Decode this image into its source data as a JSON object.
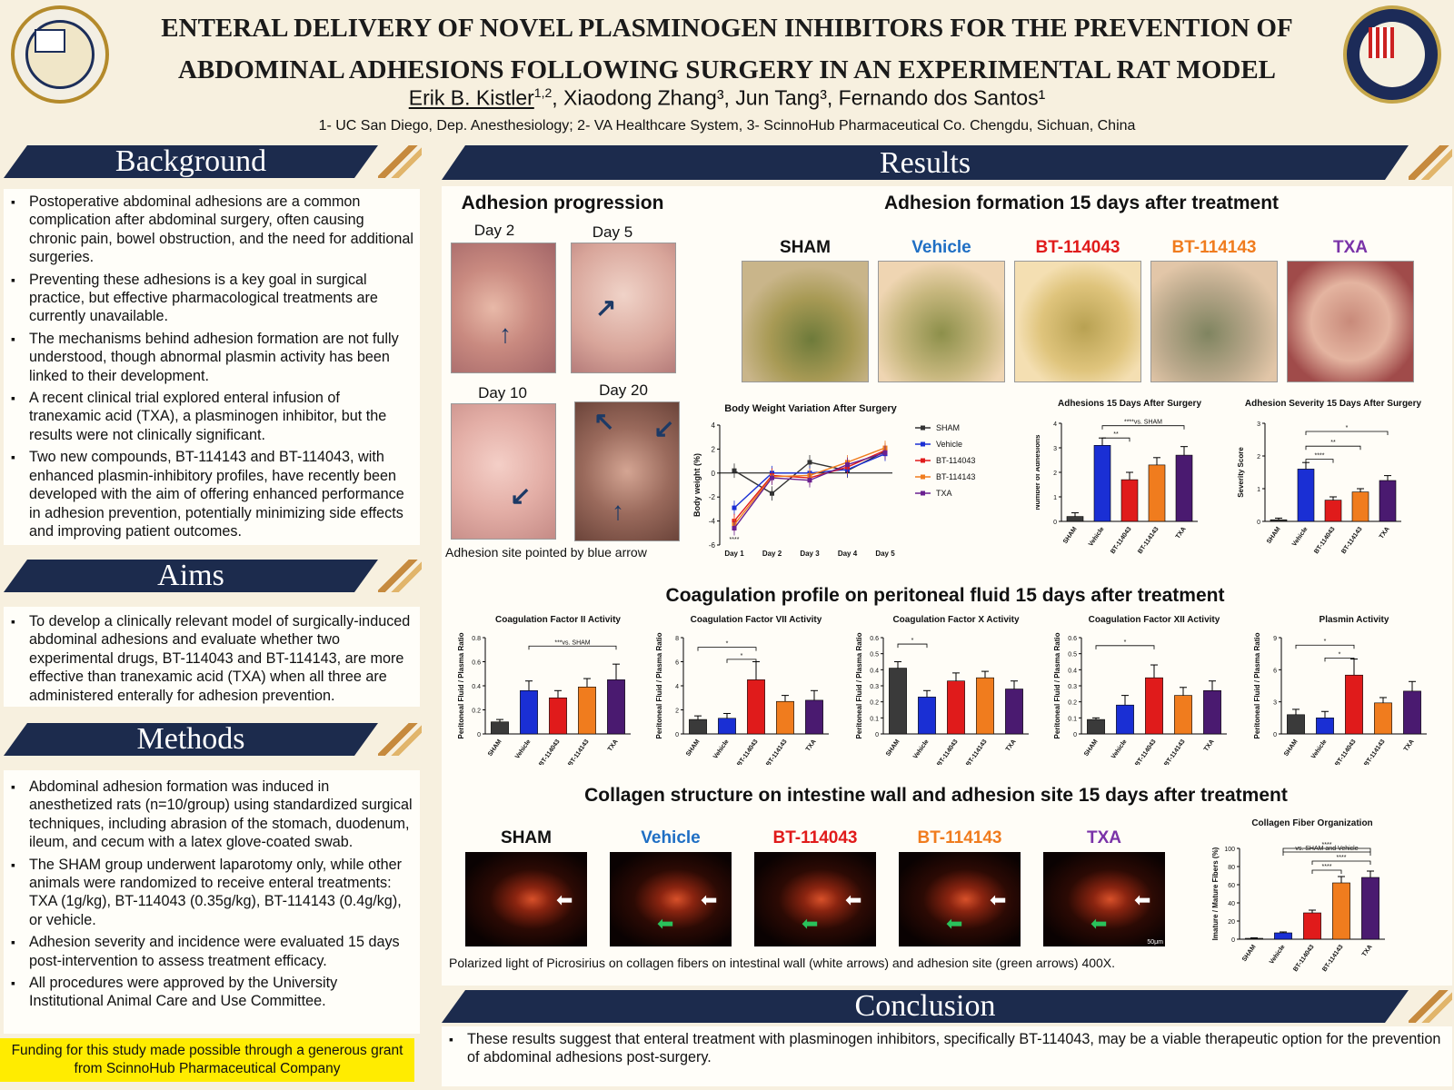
{
  "header": {
    "title_line1": "ENTERAL DELIVERY OF NOVEL PLASMINOGEN INHIBITORS FOR THE PREVENTION OF",
    "title_line2": "ABDOMINAL ADHESIONS FOLLOWING SURGERY IN AN EXPERIMENTAL RAT MODEL",
    "author_first": "Erik B. Kistler",
    "author_first_sup": "1,2",
    "authors_rest": ", Xiaodong Zhang³, Jun Tang³, Fernando dos Santos¹",
    "affiliations": "1- UC San Diego, Dep. Anesthesiology; 2- VA Healthcare System, 3- ScinnoHub Pharmaceutical Co. Chengdu, Sichuan, China",
    "left_logo_icon": "uc-san-diego-seal-icon",
    "right_logo_icon": "department-of-veterans-affairs-seal-icon"
  },
  "sections": {
    "background": "Background",
    "aims": "Aims",
    "methods": "Methods",
    "results": "Results",
    "conclusion": "Conclusion"
  },
  "background_items": [
    "Postoperative abdominal adhesions are a common complication after abdominal surgery, often causing chronic pain, bowel obstruction, and the need for additional surgeries.",
    "Preventing these adhesions is a key goal in surgical practice, but effective pharmacological treatments are currently unavailable.",
    "The mechanisms behind adhesion formation are not fully understood, though abnormal plasmin activity has been linked to their development.",
    "A recent clinical trial explored enteral infusion of tranexamic acid (TXA), a plasminogen inhibitor, but the results were not clinically significant.",
    "Two new compounds, BT-114143 and BT-114043, with enhanced plasmin-inhibitory profiles, have recently been developed with the aim of offering enhanced performance in adhesion prevention, potentially minimizing side effects and improving patient outcomes."
  ],
  "aims_items": [
    "To develop a clinically relevant model of surgically-induced abdominal adhesions and evaluate whether two experimental drugs, BT-114043 and BT-114143, are more effective than tranexamic acid (TXA) when all three are administered enterally for adhesion prevention."
  ],
  "methods_items": [
    "Abdominal adhesion formation was induced in anesthetized rats (n=10/group) using standardized surgical techniques, including abrasion of the stomach, duodenum, ileum, and cecum with a latex glove-coated swab.",
    "The SHAM group underwent laparotomy only, while other animals were randomized to receive enteral treatments: TXA (1g/kg), BT-114043 (0.35g/kg), BT-114143 (0.4g/kg), or vehicle.",
    "Adhesion severity and incidence were evaluated 15 days post-intervention to assess treatment efficacy.",
    "All procedures were approved by the University Institutional Animal Care and Use Committee."
  ],
  "funding": "Funding for this study made possible through a generous grant from ScinnoHub Pharmaceutical Company",
  "results": {
    "progression_title": "Adhesion progression",
    "days": [
      "Day 2",
      "Day 5",
      "Day 10",
      "Day 20"
    ],
    "progression_caption": "Adhesion site pointed by blue arrow",
    "formation_title": "Adhesion formation 15 days after treatment",
    "groups": [
      {
        "name": "SHAM",
        "color": "#111111"
      },
      {
        "name": "Vehicle",
        "color": "#1f6fc4"
      },
      {
        "name": "BT-114043",
        "color": "#e01b1b"
      },
      {
        "name": "BT-114143",
        "color": "#f07c1e"
      },
      {
        "name": "TXA",
        "color": "#7a33a8"
      }
    ],
    "coag_title": "Coagulation profile on peritoneal fluid 15 days after treatment",
    "collagen_title": "Collagen structure on intestine wall and adhesion site 15 days after treatment",
    "collagen_caption": "Polarized light of Picrosirius on collagen fibers on intestinal wall (white arrows) and adhesion site (green arrows) 400X.",
    "collagen_scale": "50μm"
  },
  "conclusion_text": "These results suggest that enteral treatment with plasminogen inhibitors, specifically BT-114043, may be a viable therapeutic option for the prevention of abdominal adhesions post-surgery.",
  "chart_data": [
    {
      "type": "line",
      "title": "Body Weight Variation After Surgery",
      "xlabel": "",
      "ylabel": "Body weight (%)",
      "x": [
        "Day 1",
        "Day 2",
        "Day 3",
        "Day 4",
        "Day 5"
      ],
      "ylim": [
        -6,
        4
      ],
      "yticks": [
        -6,
        -4,
        -2,
        0,
        2,
        4
      ],
      "series": [
        {
          "name": "SHAM",
          "color": "#333333",
          "values": [
            0.2,
            -1.7,
            0.9,
            0.2,
            1.8
          ]
        },
        {
          "name": "Vehicle",
          "color": "#1a2fd4",
          "values": [
            -2.9,
            0.0,
            0.0,
            0.3,
            1.6
          ]
        },
        {
          "name": "BT-114043",
          "color": "#e01b1b",
          "values": [
            -4.0,
            -0.2,
            -0.4,
            0.5,
            1.9
          ]
        },
        {
          "name": "BT-114143",
          "color": "#f07c1e",
          "values": [
            -4.3,
            -0.3,
            -0.2,
            0.9,
            2.1
          ]
        },
        {
          "name": "TXA",
          "color": "#6a2090",
          "values": [
            -4.6,
            -0.4,
            -0.6,
            0.7,
            1.7
          ]
        }
      ],
      "annotation": "****"
    },
    {
      "type": "bar",
      "title": "Adhesions 15 Days After Surgery",
      "ylabel": "Number of Adhesions",
      "categories": [
        "SHAM",
        "Vehicle",
        "BT-114043",
        "BT-114143",
        "TXA"
      ],
      "values": [
        0.2,
        3.1,
        1.7,
        2.3,
        2.7
      ],
      "errors": [
        0.15,
        0.3,
        0.3,
        0.3,
        0.35
      ],
      "ylim": [
        0,
        4
      ],
      "yticks": [
        0,
        1,
        2,
        3,
        4
      ],
      "annotations": [
        "****vs. SHAM",
        "**"
      ]
    },
    {
      "type": "bar",
      "title": "Adhesion Severity 15 Days After Surgery",
      "ylabel": "Severity Score",
      "categories": [
        "SHAM",
        "Vehicle",
        "BT-114043",
        "BT-114143",
        "TXA"
      ],
      "values": [
        0.05,
        1.6,
        0.65,
        0.9,
        1.25
      ],
      "errors": [
        0.05,
        0.2,
        0.1,
        0.1,
        0.15
      ],
      "ylim": [
        0,
        3
      ],
      "yticks": [
        0,
        1,
        2,
        3
      ],
      "annotations": [
        "*",
        "**",
        "****"
      ]
    },
    {
      "type": "bar",
      "title": "Coagulation Factor II Activity",
      "ylabel": "Peritoneal Fluid / Plasma Ratio",
      "categories": [
        "SHAM",
        "Vehicle",
        "BT-114043",
        "BT-114143",
        "TXA"
      ],
      "values": [
        0.1,
        0.36,
        0.3,
        0.39,
        0.45
      ],
      "errors": [
        0.02,
        0.08,
        0.06,
        0.07,
        0.13
      ],
      "ylim": [
        0,
        0.8
      ],
      "yticks": [
        0.0,
        0.2,
        0.4,
        0.6,
        0.8
      ],
      "annotations": [
        "***vs. SHAM"
      ]
    },
    {
      "type": "bar",
      "title": "Coagulation Factor VII Activity",
      "ylabel": "Peritoneal Fluid / Plasma Ratio",
      "categories": [
        "SHAM",
        "Vehicle",
        "BT-114043",
        "BT-114143",
        "TXA"
      ],
      "values": [
        1.2,
        1.3,
        4.5,
        2.7,
        2.8
      ],
      "errors": [
        0.3,
        0.4,
        1.5,
        0.5,
        0.8
      ],
      "ylim": [
        0,
        8
      ],
      "yticks": [
        0,
        2,
        4,
        6,
        8
      ],
      "annotations": [
        "*",
        "*"
      ]
    },
    {
      "type": "bar",
      "title": "Coagulation Factor X Activity",
      "ylabel": "Peritoneal Fluid / Plasma Ratio",
      "categories": [
        "SHAM",
        "Vehicle",
        "BT-114043",
        "BT-114143",
        "TXA"
      ],
      "values": [
        0.41,
        0.23,
        0.33,
        0.35,
        0.28
      ],
      "errors": [
        0.04,
        0.04,
        0.05,
        0.04,
        0.05
      ],
      "ylim": [
        0,
        0.6
      ],
      "yticks": [
        0.0,
        0.1,
        0.2,
        0.3,
        0.4,
        0.5,
        0.6
      ],
      "annotations": [
        "*"
      ]
    },
    {
      "type": "bar",
      "title": "Coagulation Factor XII Activity",
      "ylabel": "Peritoneal Fluid / Plasma Ratio",
      "categories": [
        "SHAM",
        "Vehicle",
        "BT-114043",
        "BT-114143",
        "TXA"
      ],
      "values": [
        0.09,
        0.18,
        0.35,
        0.24,
        0.27
      ],
      "errors": [
        0.01,
        0.06,
        0.08,
        0.05,
        0.06
      ],
      "ylim": [
        0,
        0.6
      ],
      "yticks": [
        0.0,
        0.1,
        0.2,
        0.3,
        0.4,
        0.5,
        0.6
      ],
      "annotations": [
        "*"
      ]
    },
    {
      "type": "bar",
      "title": "Plasmin Activity",
      "ylabel": "Peritoneal Fluid / Plasma Ratio",
      "categories": [
        "SHAM",
        "Vehicle",
        "BT-114043",
        "BT-114143",
        "TXA"
      ],
      "values": [
        1.8,
        1.5,
        5.5,
        2.9,
        4.0
      ],
      "errors": [
        0.5,
        0.6,
        1.5,
        0.5,
        0.9
      ],
      "ylim": [
        0,
        9
      ],
      "yticks": [
        0,
        3,
        6,
        9
      ],
      "annotations": [
        "*",
        "*"
      ]
    },
    {
      "type": "bar",
      "title": "Collagen Fiber Organization",
      "ylabel": "Imature / Mature Fibers (%)",
      "categories": [
        "SHAM",
        "Vehicle",
        "BT-114043",
        "BT-114143",
        "TXA"
      ],
      "values": [
        1,
        7,
        29,
        62,
        68
      ],
      "errors": [
        0.5,
        1,
        3,
        7,
        7
      ],
      "ylim": [
        0,
        100
      ],
      "yticks": [
        0,
        20,
        40,
        60,
        80,
        100
      ],
      "annotations": [
        "****",
        "vs. SHAM and Vehicle",
        "****",
        "****"
      ]
    }
  ]
}
